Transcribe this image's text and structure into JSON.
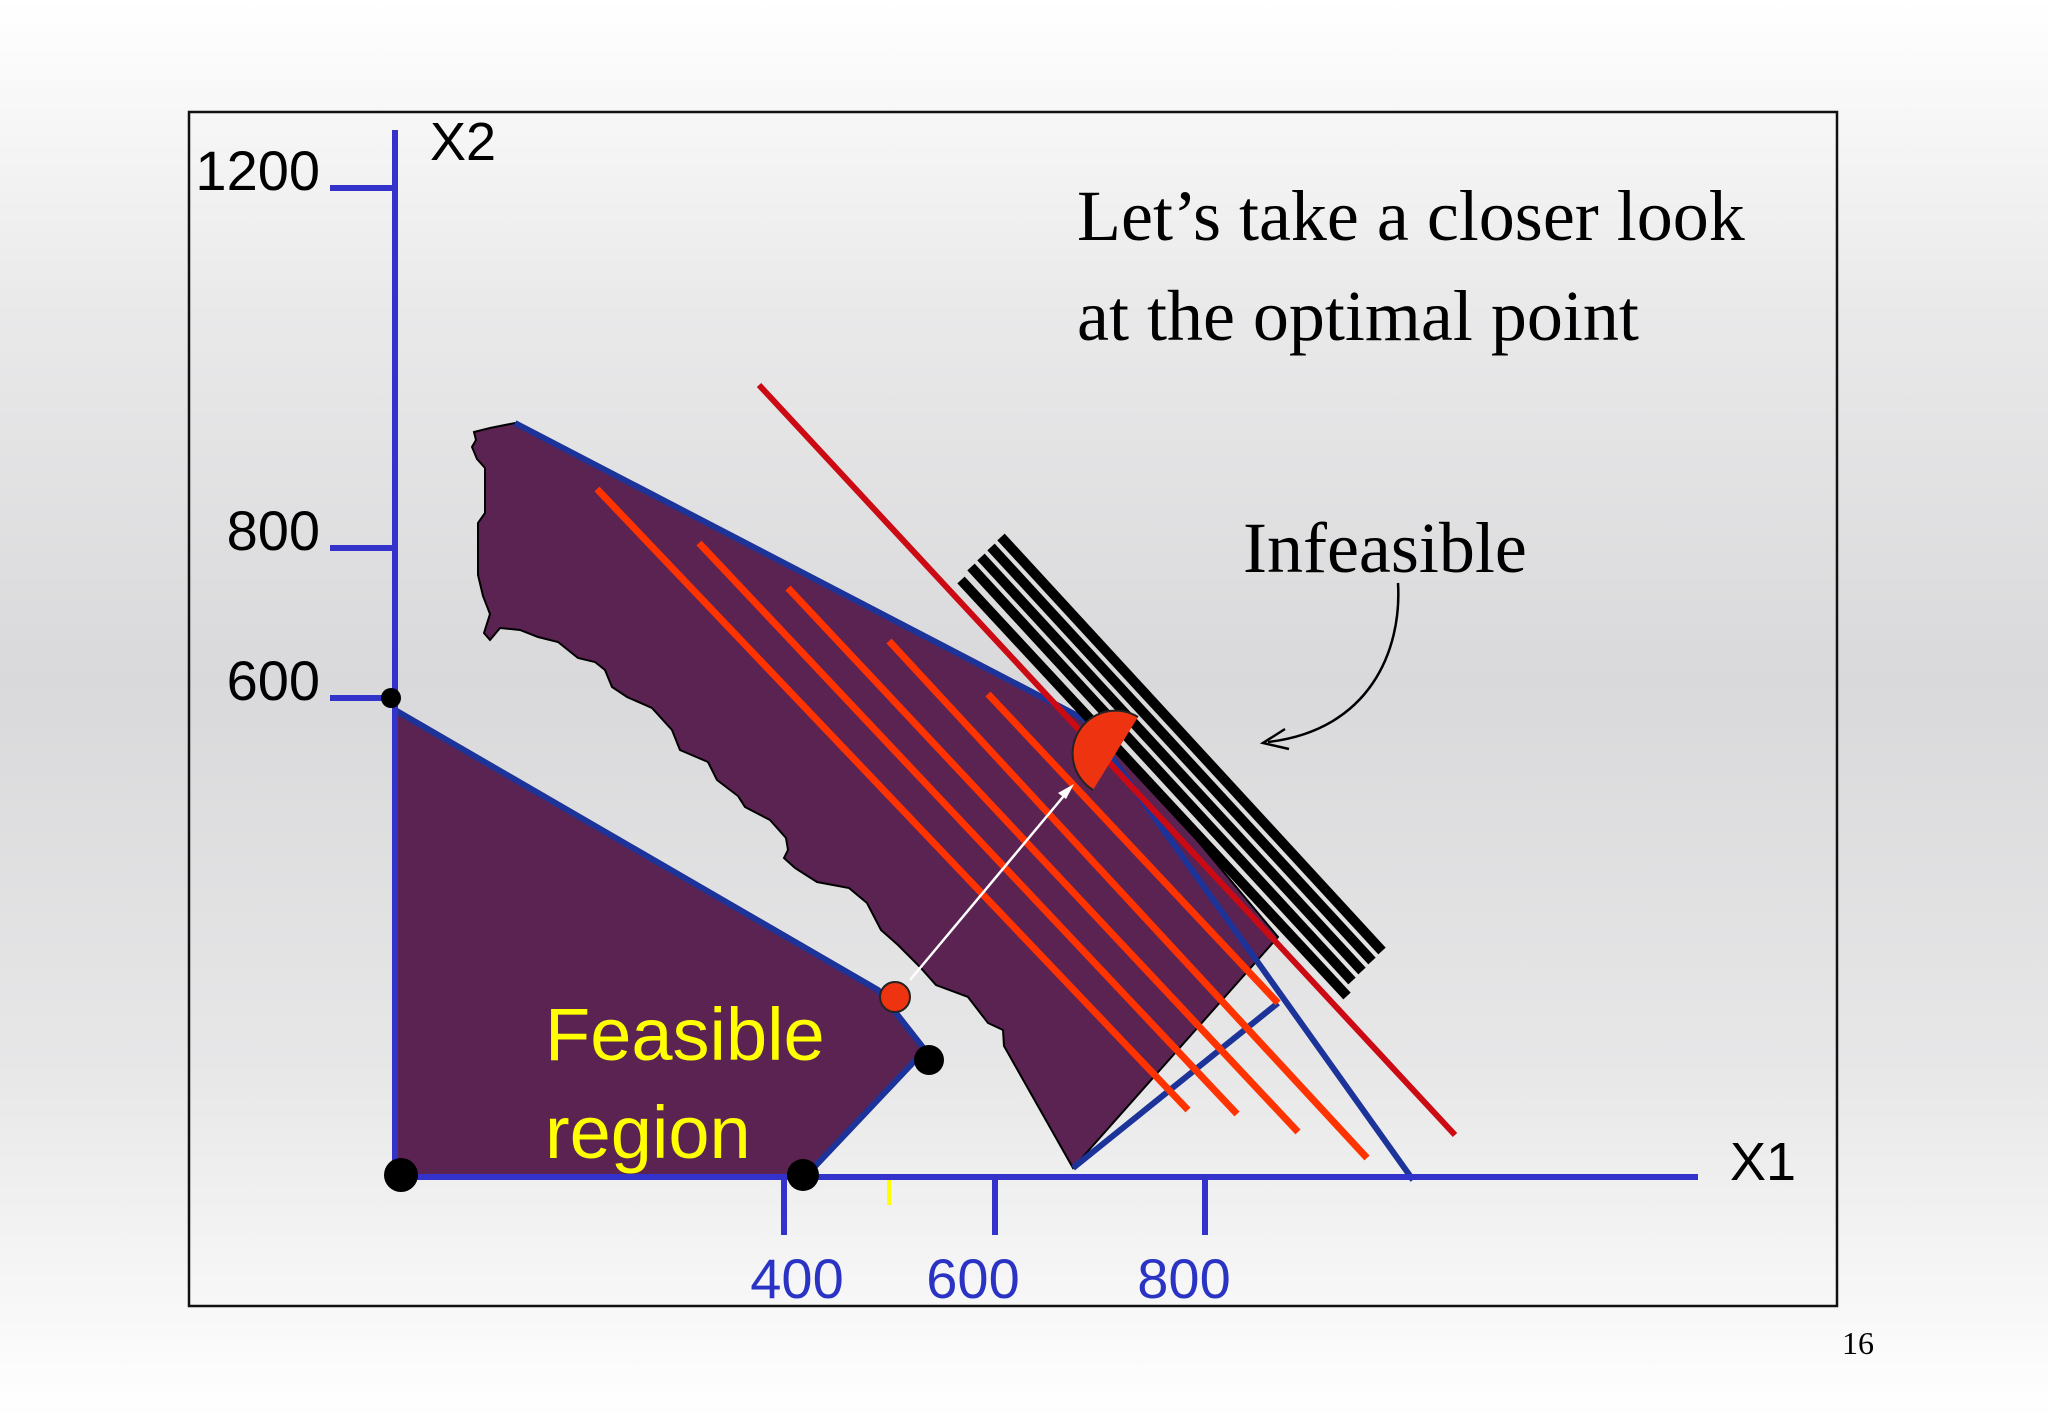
{
  "axes": {
    "x_label": "X1",
    "y_label": "X2",
    "x_ticks": [
      "400",
      "600",
      "800"
    ],
    "y_ticks": [
      "1200",
      "800",
      "600"
    ],
    "axis_color": "#3333cc",
    "x_tick_color": "#2a33c4"
  },
  "callout": {
    "line1": "Let’s take a closer look",
    "line2": "at the optimal point"
  },
  "infeasible_label": "Infeasible",
  "feasible_label": {
    "line1": "Feasible",
    "line2": "region",
    "color": "#ffff00"
  },
  "region_color": "#5b2352",
  "objective_line_color": "#ff3300",
  "constraint_line_color": "#cc0a14",
  "page_number": "16"
}
